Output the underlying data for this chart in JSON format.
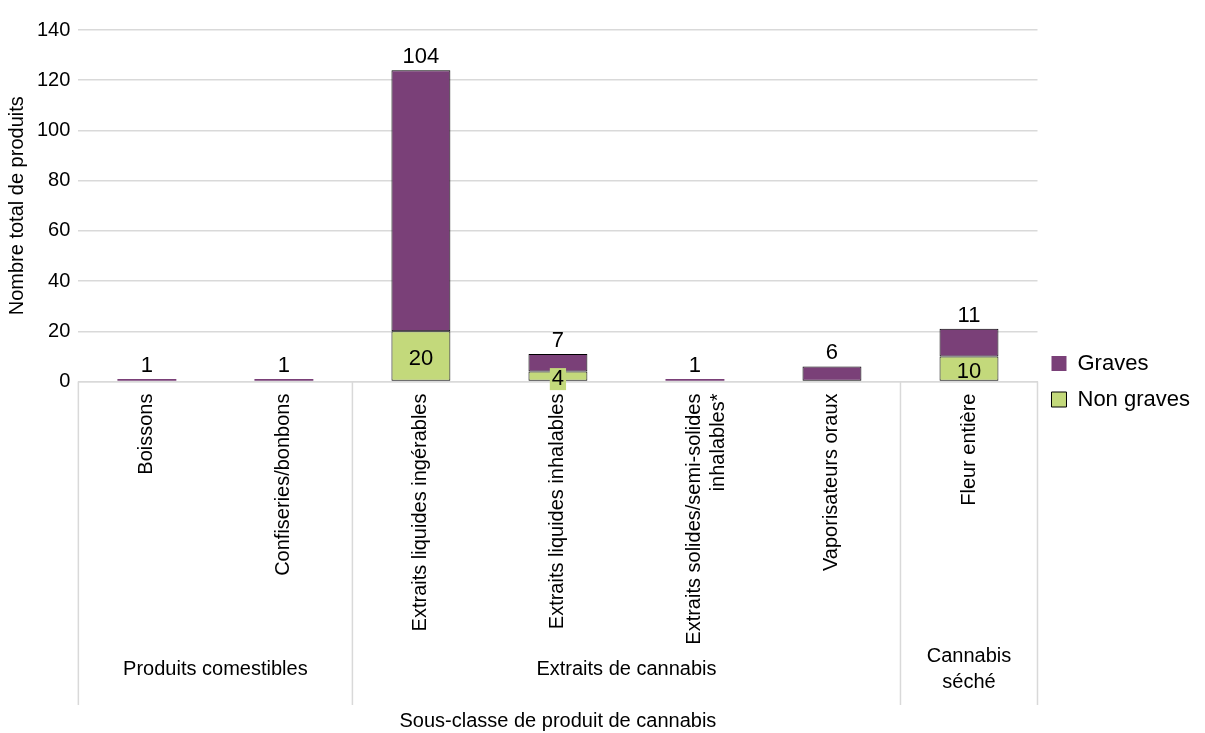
{
  "chart_data": {
    "type": "bar",
    "stacked": true,
    "xlabel": "Sous-classe de produit de cannabis",
    "ylabel": "Nombre total de produits",
    "categories": [
      "Boissons",
      "Confiseries/bonbons",
      "Extraits liquides ingérables",
      "Extraits liquides inhalables",
      "Extraits solides/semi-solides inhalables*",
      "Vaporisateurs oraux",
      "Fleur entière"
    ],
    "series": [
      {
        "name": "Non graves",
        "color": "#c3d97b",
        "values": [
          null,
          null,
          20,
          4,
          null,
          null,
          10
        ],
        "value_labels": [
          null,
          null,
          "20",
          "4",
          null,
          null,
          "10"
        ]
      },
      {
        "name": "Graves",
        "color": "#7a4078",
        "values": [
          1,
          1,
          104,
          7,
          1,
          6,
          11
        ],
        "value_labels": [
          "1",
          "1",
          "104",
          "7",
          "1",
          "6",
          "11"
        ]
      }
    ],
    "annotations": [
      "Produits comestibles",
      "Extraits de cannabis",
      "Cannabis séché"
    ],
    "ylim": [
      0,
      140
    ],
    "yticks": [
      0,
      20,
      40,
      60,
      80,
      100,
      120,
      140
    ],
    "grid": "y",
    "legend": "right"
  }
}
